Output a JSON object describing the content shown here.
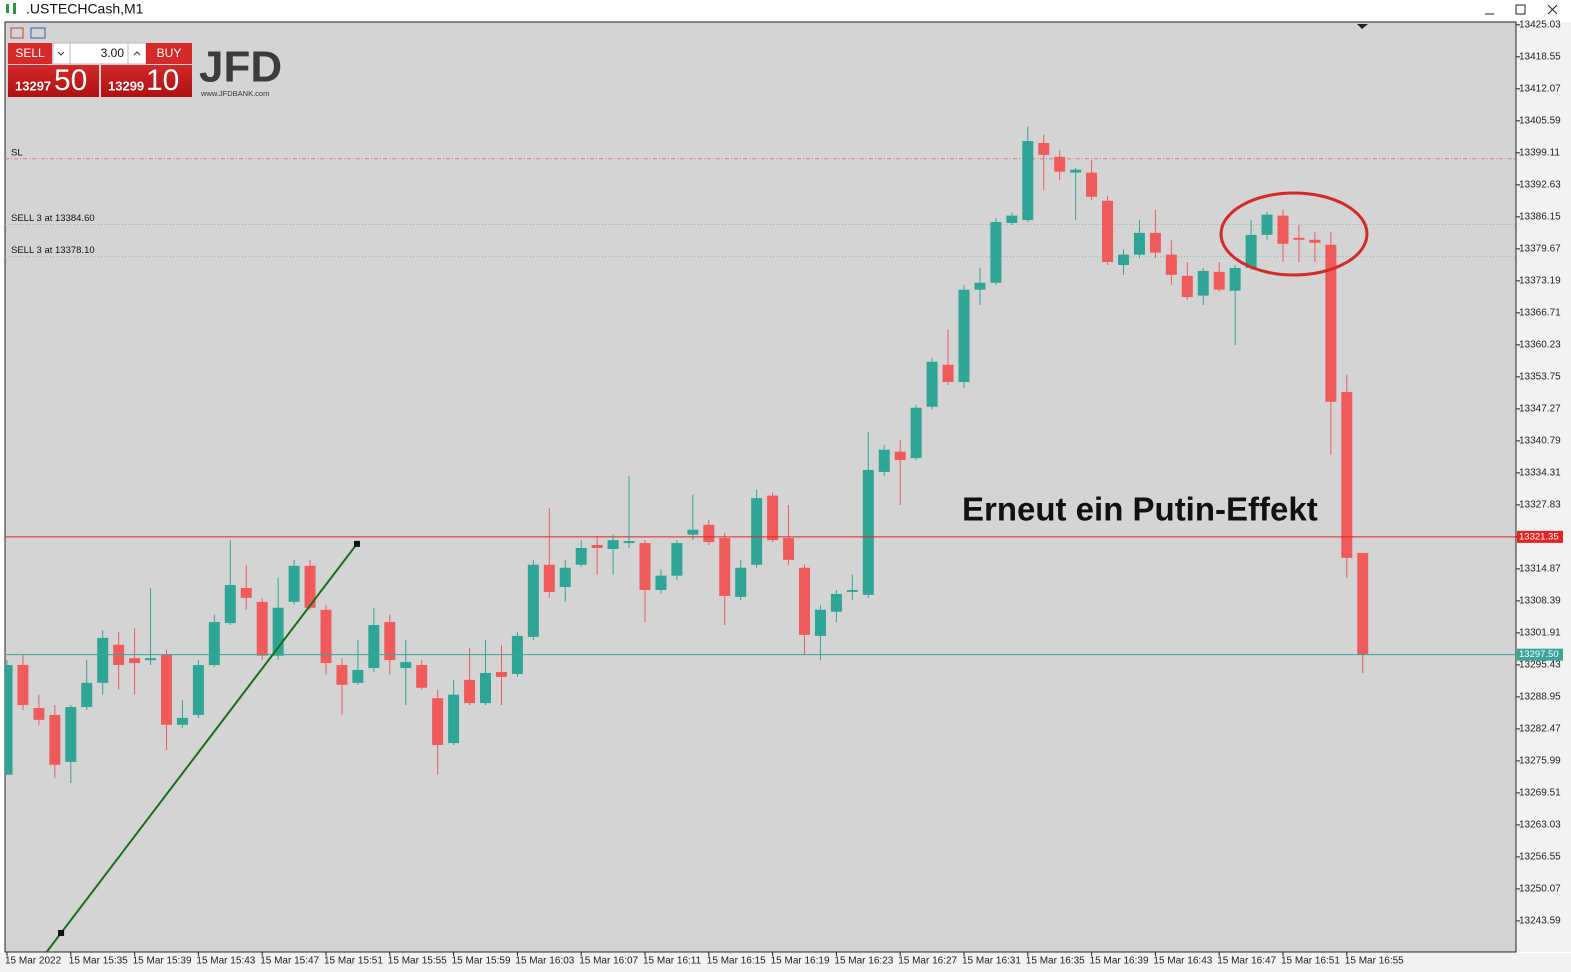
{
  "chart_data": {
    "type": "candlestick",
    "title": ".USTECHCash,M1",
    "categories": [
      "15 Mar 2022",
      null,
      null,
      null,
      "15 Mar 15:35",
      null,
      null,
      null,
      "15 Mar 15:39",
      null,
      null,
      null,
      "15 Mar 15:43",
      null,
      null,
      null,
      "15 Mar 15:47",
      null,
      null,
      null,
      "15 Mar 15:51",
      null,
      null,
      null,
      "15 Mar 15:55",
      null,
      null,
      null,
      "15 Mar 15:59",
      null,
      null,
      null,
      "15 Mar 16:03",
      null,
      null,
      null,
      "15 Mar 16:07",
      null,
      null,
      null,
      "15 Mar 16:11",
      null,
      null,
      null,
      "15 Mar 16:15",
      null,
      null,
      null,
      "15 Mar 16:19",
      null,
      null,
      null,
      "15 Mar 16:23",
      null,
      null,
      null,
      "15 Mar 16:27",
      null,
      null,
      null,
      "15 Mar 16:31",
      null,
      null,
      null,
      "15 Mar 16:35",
      null,
      null,
      null,
      "15 Mar 16:39",
      null,
      null,
      null,
      "15 Mar 16:43",
      null,
      null,
      null,
      "15 Mar 16:47",
      null,
      null,
      null,
      "15 Mar 16:51",
      null,
      null,
      null,
      "15 Mar 16:55",
      null
    ],
    "open": [
      13273.2,
      13295.4,
      13286.7,
      13285.3,
      13275.8,
      13286.9,
      13291.8,
      13299.5,
      13296.8,
      13296.4,
      13297.5,
      13283.3,
      13285.3,
      13295.4,
      13303.9,
      13311.0,
      13308.2,
      13297.3,
      13308.2,
      13315.5,
      13306.6,
      13295.4,
      13291.8,
      13294.8,
      13304.1,
      13294.8,
      13295.4,
      13288.7,
      13279.6,
      13292.4,
      13287.7,
      13294.0,
      13293.6,
      13301.1,
      13315.7,
      13311.2,
      13315.7,
      13319.7,
      13318.9,
      13320.1,
      13320.1,
      13310.6,
      13313.5,
      13321.8,
      13323.8,
      13321.1,
      13309.2,
      13315.7,
      13329.7,
      13321.1,
      13315.1,
      13301.3,
      13306.2,
      13310.2,
      13309.6,
      13334.5,
      13338.6,
      13337.3,
      13347.7,
      13356.2,
      13352.7,
      13371.4,
      13372.8,
      13384.9,
      13385.5,
      13401.1,
      13398.3,
      13395.1,
      13395.1,
      13389.4,
      13376.4,
      13378.5,
      13382.9,
      13378.5,
      13374.2,
      13370.2,
      13375.0,
      13371.2,
      13375.8,
      13382.5,
      13386.4,
      13381.9,
      13381.5,
      13380.5,
      13350.7,
      13318.1
    ],
    "high": [
      13296.4,
      13297.5,
      13289.4,
      13287.3,
      13287.3,
      13296.4,
      13302.5,
      13302.1,
      13302.9,
      13311.0,
      13298.5,
      13288.3,
      13296.4,
      13305.6,
      13320.7,
      13315.7,
      13309.0,
      13313.0,
      13316.7,
      13316.7,
      13307.6,
      13296.8,
      13300.5,
      13307.0,
      13305.6,
      13300.5,
      13296.4,
      13290.4,
      13292.4,
      13298.9,
      13300.5,
      13299.5,
      13302.1,
      13316.7,
      13327.2,
      13316.7,
      13320.7,
      13321.6,
      13321.8,
      13333.7,
      13320.7,
      13314.7,
      13320.7,
      13329.9,
      13324.8,
      13322.2,
      13316.7,
      13330.9,
      13330.3,
      13327.8,
      13315.7,
      13307.6,
      13310.6,
      13313.7,
      13342.6,
      13340.0,
      13341.0,
      13348.1,
      13357.6,
      13363.3,
      13372.4,
      13375.8,
      13385.9,
      13387.0,
      13404.4,
      13402.8,
      13399.7,
      13396.1,
      13397.7,
      13390.4,
      13379.5,
      13385.5,
      13387.6,
      13381.5,
      13377.0,
      13375.8,
      13377.0,
      13376.4,
      13385.5,
      13387.2,
      13387.6,
      13384.5,
      13383.1,
      13383.1,
      13354.2,
      13318.1
    ],
    "low": [
      13273.2,
      13286.3,
      13283.3,
      13272.5,
      13271.5,
      13286.3,
      13289.4,
      13290.4,
      13289.4,
      13295.4,
      13278.2,
      13282.7,
      13284.7,
      13295.0,
      13303.5,
      13306.6,
      13296.4,
      13296.4,
      13307.6,
      13306.6,
      13293.4,
      13285.3,
      13291.4,
      13294.0,
      13293.4,
      13287.3,
      13290.4,
      13273.2,
      13279.2,
      13287.3,
      13287.3,
      13287.3,
      13293.0,
      13300.5,
      13309.0,
      13308.2,
      13315.3,
      13313.7,
      13313.7,
      13319.1,
      13304.1,
      13309.8,
      13312.6,
      13320.7,
      13319.7,
      13303.5,
      13308.6,
      13315.1,
      13320.3,
      13315.7,
      13297.5,
      13296.4,
      13304.1,
      13308.6,
      13309.0,
      13333.7,
      13327.8,
      13336.9,
      13347.1,
      13352.1,
      13351.5,
      13368.3,
      13372.4,
      13384.5,
      13385.1,
      13391.6,
      13393.6,
      13385.5,
      13389.6,
      13376.4,
      13374.4,
      13377.8,
      13377.8,
      13372.4,
      13369.3,
      13368.3,
      13371.0,
      13360.2,
      13375.4,
      13381.5,
      13377.0,
      13377.0,
      13377.0,
      13338.0,
      13313.0,
      13293.8
    ],
    "close": [
      13295.4,
      13287.3,
      13284.3,
      13275.2,
      13286.9,
      13291.8,
      13300.9,
      13295.4,
      13295.8,
      13296.8,
      13283.3,
      13284.7,
      13295.4,
      13304.1,
      13311.6,
      13309.0,
      13297.3,
      13307.0,
      13315.5,
      13307.0,
      13295.8,
      13291.4,
      13294.4,
      13303.5,
      13296.4,
      13296.0,
      13290.8,
      13279.2,
      13289.4,
      13287.7,
      13293.8,
      13293.0,
      13301.3,
      13315.7,
      13310.2,
      13315.1,
      13319.1,
      13319.1,
      13320.7,
      13320.5,
      13310.6,
      13313.5,
      13320.1,
      13322.8,
      13320.3,
      13309.4,
      13315.1,
      13329.2,
      13320.7,
      13316.7,
      13301.5,
      13306.6,
      13309.8,
      13310.6,
      13334.9,
      13339.0,
      13336.9,
      13347.5,
      13356.8,
      13352.7,
      13371.4,
      13372.8,
      13385.1,
      13386.4,
      13401.5,
      13398.7,
      13395.3,
      13395.7,
      13390.2,
      13377.0,
      13378.5,
      13382.9,
      13378.9,
      13374.4,
      13369.9,
      13375.2,
      13371.4,
      13375.8,
      13382.5,
      13386.6,
      13380.7,
      13381.5,
      13380.9,
      13348.7,
      13317.1,
      13297.5
    ],
    "up_color": "#2fa597",
    "down_color": "#ef5b5b",
    "ylim": [
      13237.3,
      13425.6
    ],
    "yticks": [
      13243.59,
      13250.07,
      13256.55,
      13263.03,
      13269.51,
      13275.99,
      13282.47,
      13288.95,
      13295.43,
      13301.91,
      13308.39,
      13314.87,
      13321.35,
      13327.83,
      13334.31,
      13340.79,
      13347.27,
      13353.75,
      13360.23,
      13366.71,
      13373.19,
      13379.67,
      13386.15,
      13392.63,
      13399.11,
      13405.59,
      13412.07,
      13418.55,
      13425.03
    ],
    "levels": [
      {
        "label": "SL",
        "value": 13397.9,
        "color": "#d47a7a"
      },
      {
        "label": "SELL 3 at 13384.60",
        "value": 13384.6,
        "color": "#8fb8b0"
      },
      {
        "label": "SELL 3 at 13378.10",
        "value": 13378.1,
        "color": "#8fb8b0"
      }
    ],
    "price_lines": [
      {
        "value": 13321.35,
        "label": "13321.35",
        "color": "#e3241f"
      },
      {
        "value": 13297.5,
        "label": "13297.50",
        "color": "#3aa69a"
      }
    ],
    "trendline": {
      "x": [
        3.39,
        21.94
      ],
      "y": [
        13241.15,
        13319.93
      ],
      "color": "#1b6e1b"
    },
    "annotation": "Erneut ein Putin-Effekt"
  },
  "panel": {
    "sell": "SELL",
    "buy": "BUY",
    "volume": "3.00",
    "bid": [
      "13297",
      "50"
    ],
    "ask": [
      "13299",
      "10"
    ],
    "logo": "JFD",
    "logo_url": "www.JFDBANK.com"
  }
}
